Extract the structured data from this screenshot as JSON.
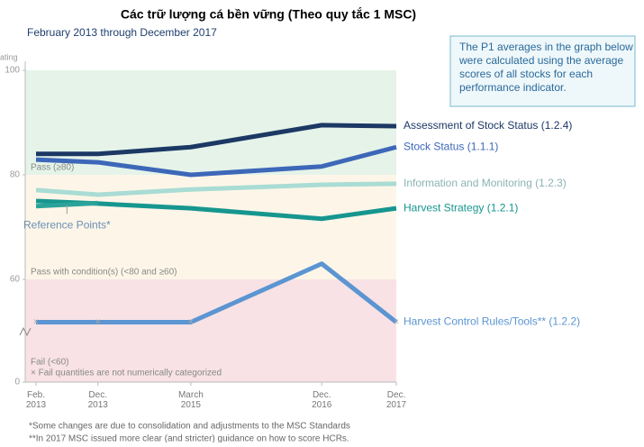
{
  "chart_data": {
    "type": "line",
    "title": "Các trữ lượng cá bền vững (Theo quy tắc 1 MSC)",
    "subtitle": "February 2013 through December 2017",
    "y_label": "ating",
    "note_box": [
      "The P1 averages in the graph below",
      "were calculated using the average",
      "scores of all stocks for each",
      "performance indicator."
    ],
    "x": [
      "Feb. 2013",
      "Dec. 2013",
      "March 2015",
      "Dec. 2016",
      "Dec. 2017"
    ],
    "ylim": [
      0,
      100
    ],
    "yticks": [
      0,
      60,
      80,
      100
    ],
    "axis_break": 60,
    "bands": [
      {
        "label": "Pass (≥80)",
        "from": 80,
        "to": 100,
        "color": "#e5f3e9"
      },
      {
        "label": "Pass with condition(s) (<80 and ≥60)",
        "from": 60,
        "to": 80,
        "color": "#fdf6e8"
      },
      {
        "label": "Fail (<60)",
        "from": 0,
        "to": 60,
        "color": "#f8e2e5"
      }
    ],
    "fail_note": "× Fail quantities are not numerically categorized",
    "series": [
      {
        "name": "Assessment of Stock Status (1.2.4)",
        "color": "#1c3864",
        "values": [
          84,
          84,
          85.3,
          89.5,
          89.3
        ]
      },
      {
        "name": "Stock Status (1.1.1)",
        "color": "#3d67b8",
        "values": [
          82.9,
          82.4,
          80,
          81.6,
          85.3
        ]
      },
      {
        "name": "Information and Monitoring (1.2.3)",
        "color": "#a9dcd4",
        "values": [
          77.1,
          76.2,
          77.2,
          78.1,
          78.3
        ]
      },
      {
        "name": "Harvest Strategy (1.2.1)",
        "color": "#16968f",
        "values": [
          75,
          74.5,
          73.6,
          71.6,
          73.6
        ]
      },
      {
        "name": "Harvest Control Rules/Tools** (1.2.2)",
        "color": "#5b95d2",
        "values": [
          35,
          35,
          35,
          63,
          35
        ]
      },
      {
        "name": "Reference Points*",
        "color": "#2ba39a",
        "values": [
          74,
          74.6,
          null,
          null,
          null
        ]
      }
    ],
    "footnotes": [
      "*Some changes are due to consolidation and adjustments to the MSC Standards",
      "**In 2017 MSC issued more clear (and stricter) guidance on how to score HCRs."
    ]
  }
}
